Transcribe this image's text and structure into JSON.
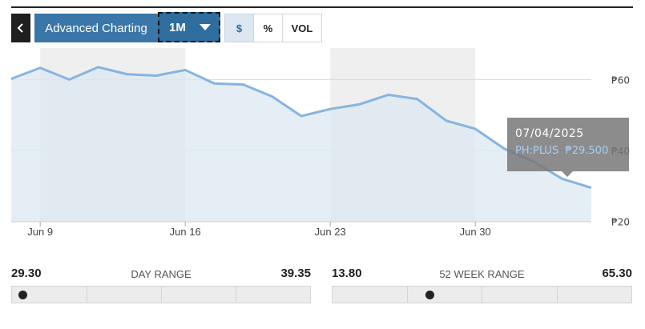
{
  "toolbar": {
    "back_icon": "chevron-left-icon",
    "advanced_label": "Advanced Charting",
    "range_label": "1M",
    "segments": [
      {
        "label": "$",
        "active": true
      },
      {
        "label": "%",
        "active": false
      },
      {
        "label": "VOL",
        "active": false
      }
    ]
  },
  "chart_data": {
    "type": "area",
    "x_tick_labels": [
      "Jun 9",
      "Jun 16",
      "Jun 23",
      "Jun 30"
    ],
    "y_tick_labels": [
      "₱60",
      "₱40",
      "₱20"
    ],
    "ylim": [
      20,
      60
    ],
    "x": [
      "06/06/2025",
      "06/09/2025",
      "06/10/2025",
      "06/11/2025",
      "06/12/2025",
      "06/13/2025",
      "06/16/2025",
      "06/17/2025",
      "06/18/2025",
      "06/19/2025",
      "06/20/2025",
      "06/23/2025",
      "06/24/2025",
      "06/25/2025",
      "06/26/2025",
      "06/27/2025",
      "06/30/2025",
      "07/01/2025",
      "07/02/2025",
      "07/03/2025",
      "07/04/2025"
    ],
    "values": [
      60.2,
      63.3,
      60.0,
      63.5,
      61.5,
      61.1,
      62.7,
      58.9,
      58.6,
      55.2,
      49.7,
      51.7,
      53.0,
      55.7,
      54.5,
      48.4,
      46.1,
      40.5,
      36.9,
      32.0,
      29.5
    ],
    "line_color": "#86b4e0",
    "fill_color": "#dce8f1",
    "grid": true
  },
  "tooltip": {
    "date": "07/04/2025",
    "series": "PH:PLUS",
    "value": "₱29.500"
  },
  "day_range": {
    "low": "29.30",
    "label": "DAY RANGE",
    "high": "39.35",
    "marker_fraction": 0.0
  },
  "week52_range": {
    "low": "13.80",
    "label": "52 WEEK RANGE",
    "high": "65.30",
    "marker_fraction": 0.3
  }
}
